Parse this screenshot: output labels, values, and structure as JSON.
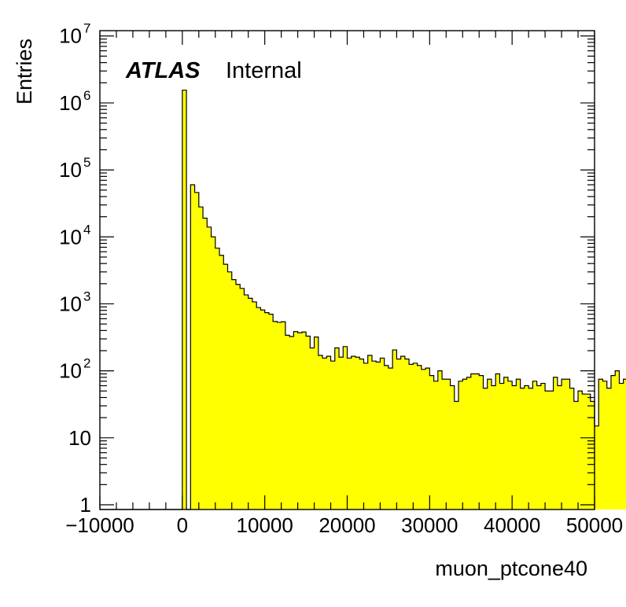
{
  "chart_data": {
    "type": "bar",
    "histogram": true,
    "xlabel": "muon_ptcone40",
    "ylabel": "Entries",
    "xlim": [
      -10000,
      50000
    ],
    "ylim": [
      0.85,
      12000000
    ],
    "log_y": true,
    "bin_width": 500,
    "first_bin_low_edge": -10000,
    "x_ticks": [
      -10000,
      0,
      10000,
      20000,
      30000,
      40000,
      50000
    ],
    "x_tick_labels": [
      "−10000",
      "0",
      "10000",
      "20000",
      "30000",
      "40000",
      "50000"
    ],
    "y_ticks": [
      {
        "value": 1,
        "base": "1",
        "exp": ""
      },
      {
        "value": 10,
        "base": "10",
        "exp": ""
      },
      {
        "value": 100,
        "base": "10",
        "exp": "2"
      },
      {
        "value": 1000,
        "base": "10",
        "exp": "3"
      },
      {
        "value": 10000,
        "base": "10",
        "exp": "4"
      },
      {
        "value": 100000,
        "base": "10",
        "exp": "5"
      },
      {
        "value": 1000000,
        "base": "10",
        "exp": "6"
      },
      {
        "value": 10000000,
        "base": "10",
        "exp": "7"
      }
    ],
    "fill_color": "#ffff00",
    "line_color": "#000000",
    "values": [
      0,
      0,
      0,
      0,
      0,
      0,
      0,
      0,
      0,
      0,
      0,
      0,
      0,
      0,
      0,
      0,
      0,
      0,
      0,
      0,
      1550000,
      0,
      60000,
      46000,
      28000,
      19000,
      14000,
      10000,
      6800,
      5300,
      3900,
      3000,
      2300,
      1950,
      1700,
      1360,
      1210,
      1070,
      880,
      810,
      740,
      700,
      545,
      530,
      540,
      340,
      325,
      385,
      370,
      380,
      330,
      220,
      320,
      170,
      155,
      165,
      140,
      220,
      160,
      230,
      155,
      165,
      160,
      150,
      130,
      170,
      140,
      135,
      155,
      120,
      110,
      205,
      150,
      165,
      150,
      125,
      130,
      120,
      105,
      110,
      85,
      70,
      100,
      75,
      75,
      60,
      35,
      70,
      75,
      80,
      90,
      90,
      85,
      55,
      75,
      60,
      90,
      65,
      80,
      70,
      60,
      75,
      55,
      60,
      55,
      70,
      60,
      65,
      50,
      50,
      80,
      60,
      75,
      75,
      55,
      35,
      50,
      45,
      45,
      35,
      15,
      75,
      70,
      55,
      85,
      100,
      65,
      75,
      80,
      50,
      80,
      22,
      25,
      30
    ]
  },
  "labels": {
    "experiment": "ATLAS",
    "status": "Internal"
  }
}
